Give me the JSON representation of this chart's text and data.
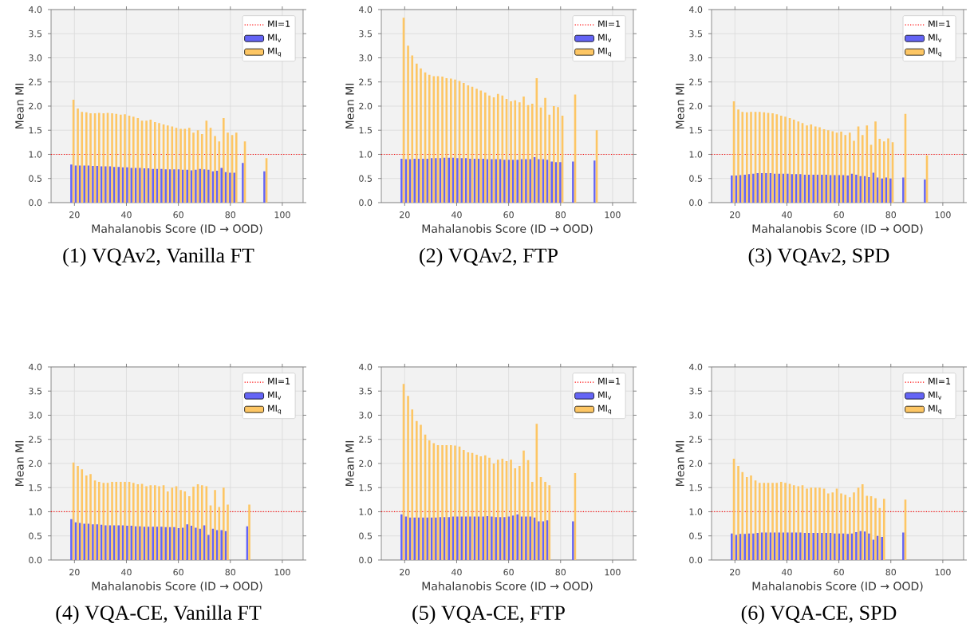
{
  "chart_data": [
    {
      "type": "bar",
      "title": "(1) VQAv2, Vanilla FT",
      "xlabel": "Mahalanobis Score (ID → OOD)",
      "ylabel": "Mean MI",
      "xlim": [
        11,
        108
      ],
      "ylim": [
        0,
        4
      ],
      "xticks": [
        20,
        40,
        60,
        80,
        100
      ],
      "yticks": [
        {
          "value": 0,
          "label": "0.0"
        },
        {
          "value": 0.5,
          "label": "0.5"
        },
        {
          "value": 1,
          "label": "1.0"
        },
        {
          "value": 1.5,
          "label": "1.5"
        },
        {
          "value": 2,
          "label": "2.0"
        },
        {
          "value": 2.5,
          "label": "2.5"
        },
        {
          "value": 3,
          "label": "3.0"
        },
        {
          "value": 3.5,
          "label": "3.5"
        },
        {
          "value": 4,
          "label": "4.0"
        }
      ],
      "grid": true,
      "legend": "top right",
      "ref_lines": [
        {
          "axis": "y",
          "value": 1,
          "label": "MI=1",
          "color": "#ff0000",
          "line_style": "dotted"
        }
      ],
      "x": [
        19.2,
        20.9,
        22.5,
        24.2,
        25.8,
        27.5,
        29.1,
        30.8,
        32.4,
        34.1,
        35.7,
        37.4,
        39,
        40.7,
        42.3,
        44,
        45.6,
        47.3,
        48.9,
        50.6,
        52.2,
        53.9,
        55.5,
        57.2,
        58.8,
        60.5,
        62.1,
        63.8,
        65.4,
        67.1,
        68.7,
        70.4,
        72,
        73.7,
        75.3,
        77,
        78.6,
        80.3,
        81.9,
        83.6,
        85.2,
        86.9,
        88.5,
        90.2,
        91.8,
        93.5
      ],
      "series": [
        {
          "name": "MI$_{v}$",
          "color": "#6464f5",
          "values": [
            0.79,
            0.77,
            0.77,
            0.77,
            0.77,
            0.76,
            0.76,
            0.75,
            0.75,
            0.75,
            0.74,
            0.74,
            0.73,
            0.73,
            0.72,
            0.72,
            0.72,
            0.71,
            0.71,
            0.7,
            0.7,
            0.7,
            0.69,
            0.69,
            0.69,
            0.69,
            0.68,
            0.68,
            0.67,
            0.68,
            0.7,
            0.69,
            0.68,
            0.65,
            0.66,
            0.72,
            0.63,
            0.62,
            0.62,
            null,
            0.82,
            null,
            null,
            null,
            null,
            0.65
          ]
        },
        {
          "name": "MI$_{q}$",
          "color": "#fdc664",
          "values": [
            2.13,
            1.95,
            1.88,
            1.87,
            1.85,
            1.85,
            1.86,
            1.85,
            1.86,
            1.85,
            1.84,
            1.82,
            1.83,
            1.8,
            1.78,
            1.75,
            1.7,
            1.7,
            1.72,
            1.67,
            1.65,
            1.62,
            1.6,
            1.58,
            1.55,
            1.53,
            1.53,
            1.55,
            1.45,
            1.5,
            1.42,
            1.7,
            1.55,
            1.38,
            1.27,
            1.75,
            1.45,
            1.4,
            1.45,
            null,
            1.27,
            null,
            null,
            null,
            null,
            0.92
          ]
        }
      ]
    },
    {
      "type": "bar",
      "title": "(2) VQAv2, FTP",
      "xlabel": "Mahalanobis Score (ID → OOD)",
      "ylabel": "Mean MI",
      "xlim": [
        11,
        108
      ],
      "ylim": [
        0,
        4
      ],
      "xticks": [
        20,
        40,
        60,
        80,
        100
      ],
      "yticks": [
        {
          "value": 0,
          "label": "0.0"
        },
        {
          "value": 0.5,
          "label": "0.5"
        },
        {
          "value": 1,
          "label": "1.0"
        },
        {
          "value": 1.5,
          "label": "1.5"
        },
        {
          "value": 2,
          "label": "2.0"
        },
        {
          "value": 2.5,
          "label": "2.5"
        },
        {
          "value": 3,
          "label": "3.0"
        },
        {
          "value": 3.5,
          "label": "3.5"
        },
        {
          "value": 4,
          "label": "4.0"
        }
      ],
      "grid": true,
      "legend": "top right",
      "ref_lines": [
        {
          "axis": "y",
          "value": 1,
          "label": "MI=1",
          "color": "#ff0000",
          "line_style": "dotted"
        }
      ],
      "x": [
        19.2,
        20.9,
        22.5,
        24.2,
        25.8,
        27.5,
        29.1,
        30.8,
        32.4,
        34.1,
        35.7,
        37.4,
        39,
        40.7,
        42.3,
        44,
        45.6,
        47.3,
        48.9,
        50.6,
        52.2,
        53.9,
        55.5,
        57.2,
        58.8,
        60.5,
        62.1,
        63.8,
        65.4,
        67.1,
        68.7,
        70.4,
        72,
        73.7,
        75.3,
        77,
        78.6,
        80.3,
        81.9,
        83.6,
        85.2,
        86.9,
        88.5,
        90.2,
        91.8,
        93.5
      ],
      "series": [
        {
          "name": "MI$_{v}$",
          "color": "#6464f5",
          "values": [
            0.91,
            0.9,
            0.9,
            0.91,
            0.91,
            0.91,
            0.91,
            0.92,
            0.92,
            0.92,
            0.93,
            0.93,
            0.93,
            0.92,
            0.92,
            0.92,
            0.91,
            0.91,
            0.91,
            0.91,
            0.9,
            0.9,
            0.9,
            0.9,
            0.89,
            0.89,
            0.89,
            0.89,
            0.9,
            0.9,
            0.9,
            0.94,
            0.9,
            0.9,
            0.89,
            0.85,
            0.84,
            0.84,
            null,
            null,
            0.85,
            null,
            null,
            null,
            null,
            0.87
          ]
        },
        {
          "name": "MI$_{q}$",
          "color": "#fdc664",
          "values": [
            3.83,
            3.25,
            3.05,
            2.88,
            2.78,
            2.7,
            2.65,
            2.62,
            2.62,
            2.61,
            2.58,
            2.57,
            2.55,
            2.52,
            2.48,
            2.43,
            2.4,
            2.36,
            2.32,
            2.28,
            2.22,
            2.18,
            2.25,
            2.22,
            2.15,
            2.1,
            2.12,
            2.08,
            2.2,
            2.02,
            2.05,
            2.58,
            1.97,
            2.17,
            1.82,
            2.0,
            1.98,
            1.8,
            null,
            null,
            2.24,
            null,
            null,
            null,
            null,
            1.5
          ]
        }
      ]
    },
    {
      "type": "bar",
      "title": "(3) VQAv2, SPD",
      "xlabel": "Mahalanobis Score (ID → OOD)",
      "ylabel": "Mean MI",
      "xlim": [
        11,
        108
      ],
      "ylim": [
        0,
        4
      ],
      "xticks": [
        20,
        40,
        60,
        80,
        100
      ],
      "yticks": [
        {
          "value": 0,
          "label": "0.0"
        },
        {
          "value": 0.5,
          "label": "0.5"
        },
        {
          "value": 1,
          "label": "1.0"
        },
        {
          "value": 1.5,
          "label": "1.5"
        },
        {
          "value": 2,
          "label": "2.0"
        },
        {
          "value": 2.5,
          "label": "2.5"
        },
        {
          "value": 3,
          "label": "3.0"
        },
        {
          "value": 3.5,
          "label": "3.5"
        },
        {
          "value": 4,
          "label": "4.0"
        }
      ],
      "grid": true,
      "legend": "top right",
      "ref_lines": [
        {
          "axis": "y",
          "value": 1,
          "label": "MI=1",
          "color": "#ff0000",
          "line_style": "dotted"
        }
      ],
      "x": [
        19.2,
        20.9,
        22.5,
        24.2,
        25.8,
        27.5,
        29.1,
        30.8,
        32.4,
        34.1,
        35.7,
        37.4,
        39,
        40.7,
        42.3,
        44,
        45.6,
        47.3,
        48.9,
        50.6,
        52.2,
        53.9,
        55.5,
        57.2,
        58.8,
        60.5,
        62.1,
        63.8,
        65.4,
        67.1,
        68.7,
        70.4,
        72,
        73.7,
        75.3,
        77,
        78.6,
        80.3,
        81.9,
        83.6,
        85.2,
        86.9,
        88.5,
        90.2,
        91.8,
        93.5
      ],
      "series": [
        {
          "name": "MI$_{v}$",
          "color": "#6464f5",
          "values": [
            0.56,
            0.56,
            0.57,
            0.58,
            0.59,
            0.6,
            0.61,
            0.61,
            0.61,
            0.61,
            0.6,
            0.6,
            0.6,
            0.6,
            0.59,
            0.59,
            0.59,
            0.58,
            0.58,
            0.58,
            0.58,
            0.58,
            0.58,
            0.57,
            0.57,
            0.57,
            0.57,
            0.56,
            0.6,
            0.58,
            0.55,
            0.55,
            0.53,
            0.62,
            0.52,
            0.5,
            0.52,
            0.5,
            null,
            null,
            0.52,
            null,
            null,
            null,
            null,
            0.48
          ]
        },
        {
          "name": "MI$_{q}$",
          "color": "#fdc664",
          "values": [
            2.1,
            1.93,
            1.88,
            1.87,
            1.88,
            1.88,
            1.88,
            1.87,
            1.86,
            1.85,
            1.83,
            1.8,
            1.78,
            1.75,
            1.72,
            1.68,
            1.65,
            1.6,
            1.62,
            1.58,
            1.56,
            1.52,
            1.5,
            1.48,
            1.45,
            1.47,
            1.4,
            1.45,
            1.28,
            1.58,
            1.4,
            1.6,
            1.2,
            1.68,
            1.32,
            1.27,
            1.33,
            1.25,
            null,
            null,
            1.84,
            null,
            null,
            null,
            null,
            0.98
          ]
        }
      ]
    },
    {
      "type": "bar",
      "title": "(4) VQA-CE, Vanilla FT",
      "xlabel": "Mahalanobis Score (ID → OOD)",
      "ylabel": "Mean MI",
      "xlim": [
        11,
        108
      ],
      "ylim": [
        0,
        4
      ],
      "xticks": [
        20,
        40,
        60,
        80,
        100
      ],
      "yticks": [
        {
          "value": 0,
          "label": "0.0"
        },
        {
          "value": 0.5,
          "label": "0.5"
        },
        {
          "value": 1,
          "label": "1.0"
        },
        {
          "value": 1.5,
          "label": "1.5"
        },
        {
          "value": 2,
          "label": "2.0"
        },
        {
          "value": 2.5,
          "label": "2.5"
        },
        {
          "value": 3,
          "label": "3.0"
        },
        {
          "value": 3.5,
          "label": "3.5"
        },
        {
          "value": 4,
          "label": "4.0"
        }
      ],
      "grid": true,
      "legend": "top right",
      "ref_lines": [
        {
          "axis": "y",
          "value": 1,
          "label": "MI=1",
          "color": "#ff0000",
          "line_style": "dotted"
        }
      ],
      "x": [
        19.2,
        20.9,
        22.5,
        24.2,
        25.8,
        27.5,
        29.1,
        30.8,
        32.4,
        34.1,
        35.7,
        37.4,
        39,
        40.7,
        42.3,
        44,
        45.6,
        47.3,
        48.9,
        50.6,
        52.2,
        53.9,
        55.5,
        57.2,
        58.8,
        60.5,
        62.1,
        63.8,
        65.4,
        67.1,
        68.7,
        70.4,
        72,
        73.7,
        75.3,
        77,
        78.6,
        80.3,
        81.9,
        83.6,
        85.2,
        86.9
      ],
      "series": [
        {
          "name": "MI$_{v}$",
          "color": "#6464f5",
          "values": [
            0.85,
            0.78,
            0.77,
            0.75,
            0.75,
            0.74,
            0.74,
            0.73,
            0.72,
            0.72,
            0.72,
            0.72,
            0.72,
            0.71,
            0.71,
            0.7,
            0.7,
            0.69,
            0.69,
            0.69,
            0.69,
            0.69,
            0.68,
            0.68,
            0.68,
            0.66,
            0.67,
            0.74,
            0.71,
            0.67,
            0.65,
            0.72,
            0.52,
            0.65,
            0.62,
            0.62,
            0.6,
            null,
            null,
            null,
            null,
            0.7
          ]
        },
        {
          "name": "MI$_{q}$",
          "color": "#fdc664",
          "values": [
            2.02,
            1.95,
            1.88,
            1.75,
            1.78,
            1.65,
            1.62,
            1.6,
            1.6,
            1.62,
            1.62,
            1.62,
            1.62,
            1.62,
            1.6,
            1.57,
            1.58,
            1.53,
            1.55,
            1.55,
            1.53,
            1.55,
            1.42,
            1.5,
            1.53,
            1.45,
            1.42,
            1.32,
            1.52,
            1.57,
            1.55,
            1.53,
            1.13,
            1.45,
            1.1,
            1.5,
            1.15,
            null,
            null,
            null,
            null,
            1.15
          ]
        }
      ]
    },
    {
      "type": "bar",
      "title": "(5) VQA-CE, FTP",
      "xlabel": "Mahalanobis Score (ID → OOD)",
      "ylabel": "Mean MI",
      "xlim": [
        11,
        108
      ],
      "ylim": [
        0,
        4
      ],
      "xticks": [
        20,
        40,
        60,
        80,
        100
      ],
      "yticks": [
        {
          "value": 0,
          "label": "0.0"
        },
        {
          "value": 0.5,
          "label": "0.5"
        },
        {
          "value": 1,
          "label": "1.0"
        },
        {
          "value": 1.5,
          "label": "1.5"
        },
        {
          "value": 2,
          "label": "2.0"
        },
        {
          "value": 2.5,
          "label": "2.5"
        },
        {
          "value": 3,
          "label": "3.0"
        },
        {
          "value": 3.5,
          "label": "3.5"
        },
        {
          "value": 4,
          "label": "4.0"
        }
      ],
      "grid": true,
      "legend": "top right",
      "ref_lines": [
        {
          "axis": "y",
          "value": 1,
          "label": "MI=1",
          "color": "#ff0000",
          "line_style": "dotted"
        }
      ],
      "x": [
        19.2,
        20.9,
        22.5,
        24.2,
        25.8,
        27.5,
        29.1,
        30.8,
        32.4,
        34.1,
        35.7,
        37.4,
        39,
        40.7,
        42.3,
        44,
        45.6,
        47.3,
        48.9,
        50.6,
        52.2,
        53.9,
        55.5,
        57.2,
        58.8,
        60.5,
        62.1,
        63.8,
        65.4,
        67.1,
        68.7,
        70.4,
        72,
        73.7,
        75.3,
        77,
        78.6,
        80.3,
        81.9,
        83.6,
        85.2
      ],
      "series": [
        {
          "name": "MI$_{v}$",
          "color": "#6464f5",
          "values": [
            0.95,
            0.9,
            0.88,
            0.88,
            0.88,
            0.88,
            0.88,
            0.88,
            0.88,
            0.89,
            0.89,
            0.89,
            0.9,
            0.9,
            0.9,
            0.9,
            0.9,
            0.9,
            0.9,
            0.9,
            0.91,
            0.9,
            0.89,
            0.89,
            0.89,
            0.9,
            0.92,
            0.95,
            0.9,
            0.9,
            0.9,
            0.88,
            0.8,
            0.8,
            0.82,
            null,
            null,
            null,
            null,
            null,
            0.8
          ]
        },
        {
          "name": "MI$_{q}$",
          "color": "#fdc664",
          "values": [
            3.65,
            3.4,
            3.12,
            2.88,
            2.8,
            2.6,
            2.48,
            2.42,
            2.38,
            2.38,
            2.38,
            2.38,
            2.37,
            2.35,
            2.28,
            2.23,
            2.22,
            2.18,
            2.15,
            2.17,
            2.12,
            2.0,
            2.08,
            2.1,
            2.05,
            2.08,
            1.9,
            1.95,
            2.27,
            2.07,
            1.62,
            2.82,
            1.72,
            1.62,
            1.55,
            null,
            null,
            null,
            null,
            null,
            1.8
          ]
        }
      ]
    },
    {
      "type": "bar",
      "title": "(6) VQA-CE, SPD",
      "xlabel": "Mahalanobis Score (ID → OOD)",
      "ylabel": "Mean MI",
      "xlim": [
        11,
        108
      ],
      "ylim": [
        0,
        4
      ],
      "xticks": [
        20,
        40,
        60,
        80,
        100
      ],
      "yticks": [
        {
          "value": 0,
          "label": "0.0"
        },
        {
          "value": 0.5,
          "label": "0.5"
        },
        {
          "value": 1,
          "label": "1.0"
        },
        {
          "value": 1.5,
          "label": "1.5"
        },
        {
          "value": 2,
          "label": "2.0"
        },
        {
          "value": 2.5,
          "label": "2.5"
        },
        {
          "value": 3,
          "label": "3.0"
        },
        {
          "value": 3.5,
          "label": "3.5"
        },
        {
          "value": 4,
          "label": "4.0"
        }
      ],
      "grid": true,
      "legend": "top right",
      "ref_lines": [
        {
          "axis": "y",
          "value": 1,
          "label": "MI=1",
          "color": "#ff0000",
          "line_style": "dotted"
        }
      ],
      "x": [
        19.2,
        20.9,
        22.5,
        24.2,
        25.8,
        27.5,
        29.1,
        30.8,
        32.4,
        34.1,
        35.7,
        37.4,
        39,
        40.7,
        42.3,
        44,
        45.6,
        47.3,
        48.9,
        50.6,
        52.2,
        53.9,
        55.5,
        57.2,
        58.8,
        60.5,
        62.1,
        63.8,
        65.4,
        67.1,
        68.7,
        70.4,
        72,
        73.7,
        75.3,
        77,
        78.6,
        80.3,
        81.9,
        83.6,
        85.2
      ],
      "series": [
        {
          "name": "MI$_{v}$",
          "color": "#6464f5",
          "values": [
            0.55,
            0.52,
            0.54,
            0.54,
            0.55,
            0.55,
            0.56,
            0.57,
            0.57,
            0.57,
            0.57,
            0.57,
            0.57,
            0.57,
            0.57,
            0.57,
            0.57,
            0.56,
            0.56,
            0.56,
            0.56,
            0.56,
            0.56,
            0.56,
            0.55,
            0.55,
            0.55,
            0.54,
            0.55,
            0.58,
            0.6,
            0.59,
            0.55,
            0.42,
            0.5,
            0.48,
            null,
            null,
            null,
            null,
            0.57
          ]
        },
        {
          "name": "MI$_{q}$",
          "color": "#fdc664",
          "values": [
            2.1,
            1.95,
            1.82,
            1.72,
            1.75,
            1.65,
            1.6,
            1.6,
            1.6,
            1.6,
            1.6,
            1.62,
            1.6,
            1.58,
            1.55,
            1.53,
            1.55,
            1.48,
            1.5,
            1.5,
            1.5,
            1.48,
            1.38,
            1.4,
            1.48,
            1.38,
            1.35,
            1.3,
            1.4,
            1.5,
            1.57,
            1.33,
            1.32,
            1.28,
            1.08,
            1.27,
            null,
            null,
            null,
            null,
            1.25
          ]
        }
      ]
    }
  ]
}
